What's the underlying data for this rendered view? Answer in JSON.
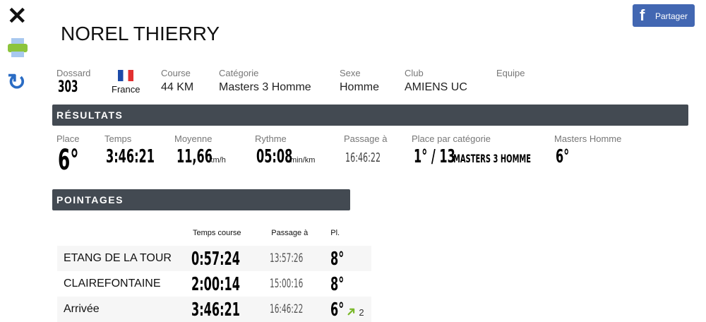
{
  "side": {
    "close": "close-icon",
    "print": "printer-icon",
    "refresh": "refresh-icon"
  },
  "share": {
    "label": "Partager",
    "icon": "f",
    "color": "#4267b2"
  },
  "athlete": {
    "name": "NOREL THIERRY"
  },
  "info": {
    "dossard_label": "Dossard",
    "dossard": "303",
    "country": "France",
    "course_label": "Course",
    "course": "44 KM",
    "cat_label": "Catégorie",
    "cat": "Masters 3 Homme",
    "sexe_label": "Sexe",
    "sexe": "Homme",
    "club_label": "Club",
    "club": "AMIENS UC",
    "equipe_label": "Equipe"
  },
  "results": {
    "title": "RÉSULTATS",
    "place_label": "Place",
    "place": "6°",
    "temps_label": "Temps",
    "temps": "3:46:21",
    "moy_label": "Moyenne",
    "moy": "11,66",
    "moy_unit": "km/h",
    "rythme_label": "Rythme",
    "rythme": "05:08",
    "rythme_unit": "min/km",
    "passage_label": "Passage à",
    "passage": "16:46:22",
    "pcat_label": "Place par catégorie",
    "pcat": "1° / 13",
    "pcat_name": "MASTERS 3 HOMME",
    "mh_label": "Masters Homme",
    "mh": "6°"
  },
  "pointages": {
    "title": "POINTAGES",
    "headers": [
      "Temps course",
      "Passage à",
      "Pl."
    ],
    "rows": [
      {
        "name": "ETANG DE LA TOUR",
        "time": "0:57:24",
        "passage": "13:57:26",
        "place": "8°"
      },
      {
        "name": "CLAIREFONTAINE",
        "time": "2:00:14",
        "passage": "15:00:16",
        "place": "8°"
      },
      {
        "name": "Arrivée",
        "time": "3:46:21",
        "passage": "16:46:22",
        "place": "6°",
        "gain": "2"
      }
    ]
  }
}
